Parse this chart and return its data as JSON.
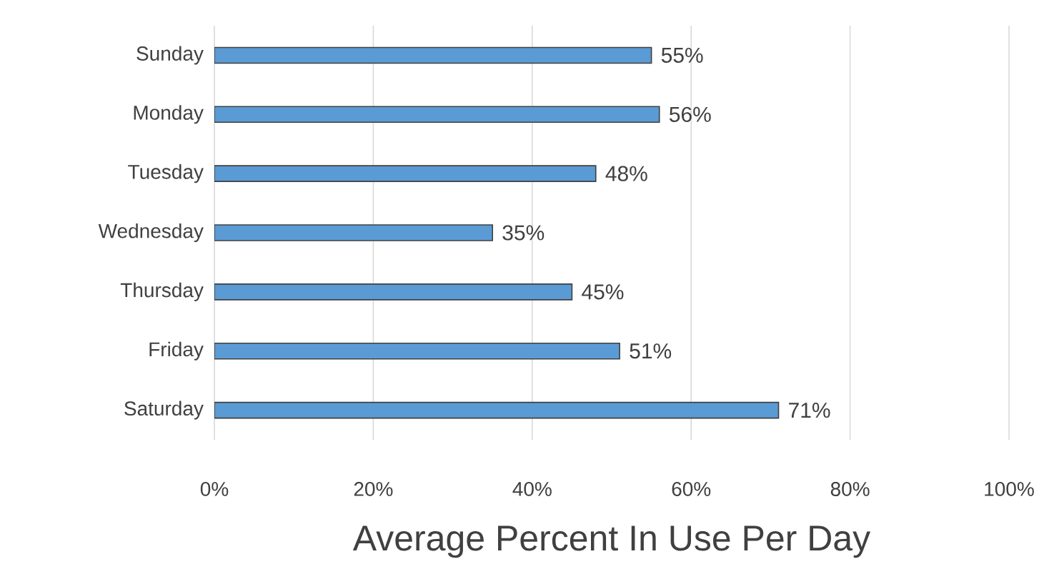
{
  "chart_data": {
    "type": "bar",
    "orientation": "horizontal",
    "xlabel": "Average Percent In Use Per Day",
    "categories": [
      "Sunday",
      "Monday",
      "Tuesday",
      "Wednesday",
      "Thursday",
      "Friday",
      "Saturday"
    ],
    "values": [
      55,
      56,
      48,
      35,
      45,
      51,
      71
    ],
    "value_labels": [
      "55%",
      "56%",
      "48%",
      "35%",
      "45%",
      "51%",
      "71%"
    ],
    "color": "#5b9bd5",
    "xlim": [
      0,
      100
    ],
    "xticks": [
      {
        "value": 0,
        "label": "0%"
      },
      {
        "value": 20,
        "label": "20%"
      },
      {
        "value": 40,
        "label": "40%"
      },
      {
        "value": 60,
        "label": "60%"
      },
      {
        "value": 80,
        "label": "80%"
      },
      {
        "value": 100,
        "label": "100%"
      }
    ],
    "grid": "x"
  }
}
